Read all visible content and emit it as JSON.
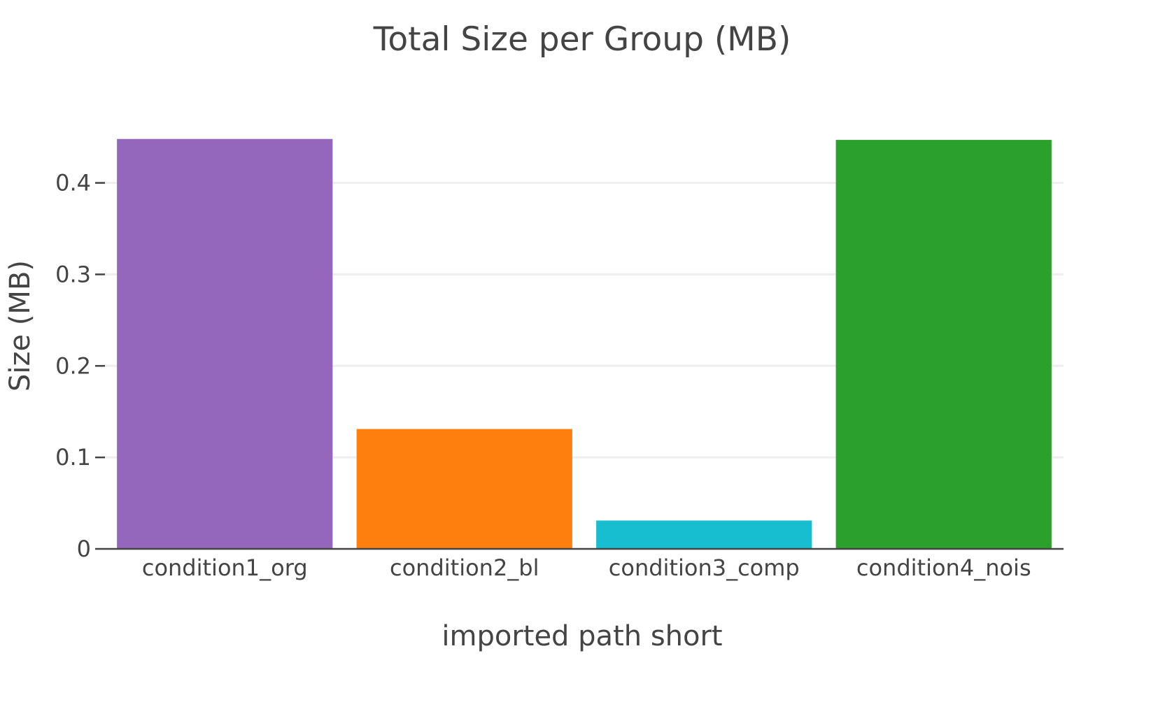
{
  "chart_data": {
    "type": "bar",
    "title": "Total Size per Group (MB)",
    "xlabel": "imported path short",
    "ylabel": "Size (MB)",
    "categories": [
      "condition1_org",
      "condition2_bl",
      "condition3_comp",
      "condition4_nois"
    ],
    "values": [
      0.448,
      0.131,
      0.031,
      0.447
    ],
    "colors": [
      "#9467bd",
      "#ff7f0e",
      "#17becf",
      "#2ca02c"
    ],
    "ylim": [
      0,
      0.4715
    ],
    "yticks": [
      0,
      0.1,
      0.2,
      0.3,
      0.4
    ],
    "ytick_labels": [
      "0",
      "0.1",
      "0.2",
      "0.3",
      "0.4"
    ],
    "grid": true,
    "legend": "none"
  }
}
